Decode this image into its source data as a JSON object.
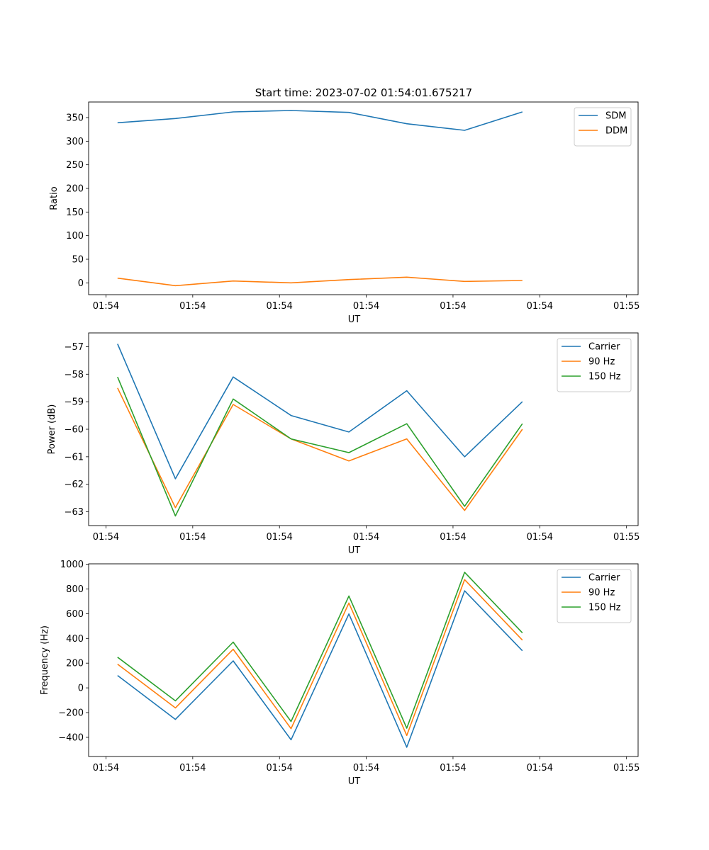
{
  "figure": {
    "title": "Start time: 2023-07-02 01:54:01.675217"
  },
  "chart_data": [
    {
      "type": "line",
      "xlabel": "UT",
      "ylabel": "Ratio",
      "x": [
        0,
        1,
        2,
        3,
        4,
        5,
        6,
        7
      ],
      "xlim": [
        -0.5,
        9
      ],
      "x_ticks": [
        {
          "x": -0.2,
          "label": "01:54"
        },
        {
          "x": 1.3,
          "label": "01:54"
        },
        {
          "x": 2.8,
          "label": "01:54"
        },
        {
          "x": 4.3,
          "label": "01:54"
        },
        {
          "x": 5.8,
          "label": "01:54"
        },
        {
          "x": 7.3,
          "label": "01:54"
        },
        {
          "x": 8.8,
          "label": "01:55"
        }
      ],
      "ylim": [
        -25,
        383
      ],
      "y_ticks": [
        0,
        50,
        100,
        150,
        200,
        250,
        300,
        350
      ],
      "legend": "top-right",
      "grid": false,
      "series": [
        {
          "name": "SDM",
          "color": "#1f77b4",
          "values": [
            339,
            348,
            362,
            365,
            361,
            337,
            323,
            362
          ]
        },
        {
          "name": "DDM",
          "color": "#ff7f0e",
          "values": [
            10,
            -6,
            4,
            0,
            7,
            12,
            3,
            5
          ]
        }
      ]
    },
    {
      "type": "line",
      "xlabel": "UT",
      "ylabel": "Power (dB)",
      "x": [
        0,
        1,
        2,
        3,
        4,
        5,
        6,
        7
      ],
      "xlim": [
        -0.5,
        9
      ],
      "x_ticks": [
        {
          "x": -0.2,
          "label": "01:54"
        },
        {
          "x": 1.3,
          "label": "01:54"
        },
        {
          "x": 2.8,
          "label": "01:54"
        },
        {
          "x": 4.3,
          "label": "01:54"
        },
        {
          "x": 5.8,
          "label": "01:54"
        },
        {
          "x": 7.3,
          "label": "01:54"
        },
        {
          "x": 8.8,
          "label": "01:55"
        }
      ],
      "ylim": [
        -63.5,
        -56.5
      ],
      "y_ticks": [
        -63,
        -62,
        -61,
        -60,
        -59,
        -58,
        -57
      ],
      "legend": "top-right",
      "grid": false,
      "series": [
        {
          "name": "Carrier",
          "color": "#1f77b4",
          "values": [
            -56.9,
            -61.8,
            -58.1,
            -59.5,
            -60.1,
            -58.6,
            -61.0,
            -59.0
          ]
        },
        {
          "name": "90 Hz",
          "color": "#ff7f0e",
          "values": [
            -58.5,
            -62.85,
            -59.1,
            -60.35,
            -61.15,
            -60.35,
            -62.95,
            -60.0
          ]
        },
        {
          "name": "150 Hz",
          "color": "#2ca02c",
          "values": [
            -58.1,
            -63.15,
            -58.9,
            -60.35,
            -60.85,
            -59.8,
            -62.8,
            -59.8
          ]
        }
      ]
    },
    {
      "type": "line",
      "xlabel": "UT",
      "ylabel": "Frequency (Hz)",
      "x": [
        0,
        1,
        2,
        3,
        4,
        5,
        6,
        7
      ],
      "xlim": [
        -0.5,
        9
      ],
      "x_ticks": [
        {
          "x": -0.2,
          "label": "01:54"
        },
        {
          "x": 1.3,
          "label": "01:54"
        },
        {
          "x": 2.8,
          "label": "01:54"
        },
        {
          "x": 4.3,
          "label": "01:54"
        },
        {
          "x": 5.8,
          "label": "01:54"
        },
        {
          "x": 7.3,
          "label": "01:54"
        },
        {
          "x": 8.8,
          "label": "01:55"
        }
      ],
      "ylim": [
        -555,
        1003
      ],
      "y_ticks": [
        -400,
        -200,
        0,
        200,
        400,
        600,
        800,
        1000
      ],
      "legend": "top-right",
      "grid": false,
      "series": [
        {
          "name": "Carrier",
          "color": "#1f77b4",
          "values": [
            100,
            -255,
            218,
            -420,
            598,
            -480,
            785,
            300
          ]
        },
        {
          "name": "90 Hz",
          "color": "#ff7f0e",
          "values": [
            192,
            -162,
            312,
            -330,
            686,
            -385,
            875,
            386
          ]
        },
        {
          "name": "150 Hz",
          "color": "#2ca02c",
          "values": [
            248,
            -105,
            370,
            -272,
            743,
            -326,
            935,
            445
          ]
        }
      ]
    }
  ]
}
